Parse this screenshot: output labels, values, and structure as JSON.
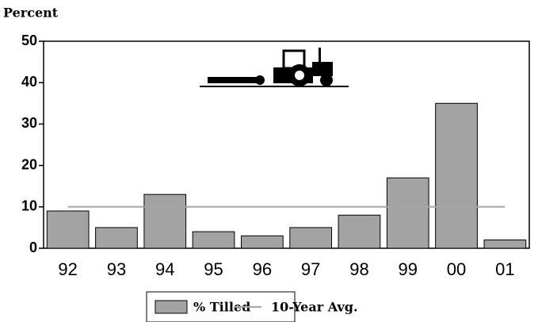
{
  "chart_data": {
    "type": "bar",
    "y_label": "Percent",
    "categories": [
      "92",
      "93",
      "94",
      "95",
      "96",
      "97",
      "98",
      "99",
      "00",
      "01"
    ],
    "series": [
      {
        "name": "% Tilled",
        "type": "bar",
        "color": "#a3a3a3",
        "values": [
          9,
          5,
          13,
          4,
          3,
          5,
          8,
          17,
          35,
          2
        ]
      },
      {
        "name": "10-Year Avg.",
        "type": "line",
        "color": "#a6a6a6",
        "values": [
          10,
          10,
          10,
          10,
          10,
          10,
          10,
          10,
          10,
          10
        ]
      }
    ],
    "ylim": [
      0,
      50
    ],
    "yticks": [
      0,
      10,
      20,
      30,
      40,
      50
    ],
    "grid": false
  }
}
